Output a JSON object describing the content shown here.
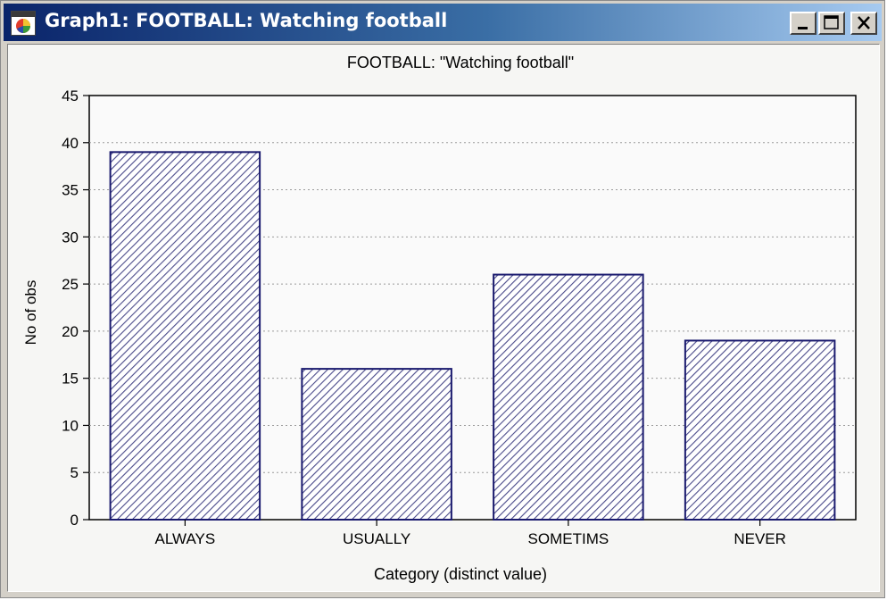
{
  "window": {
    "title": "Graph1: FOOTBALL:  Watching football",
    "icon": "statistica-app-icon",
    "controls": [
      "minimize-icon",
      "maximize-icon",
      "close-icon"
    ]
  },
  "chart_data": {
    "type": "bar",
    "title": "FOOTBALL: \"Watching football\"",
    "xlabel": "Category (distinct value)",
    "ylabel": "No of obs",
    "categories": [
      "ALWAYS",
      "USUALLY",
      "SOMETIMS",
      "NEVER"
    ],
    "values": [
      39,
      16,
      26,
      19
    ],
    "ylim": [
      0,
      45
    ],
    "yticks": [
      0,
      5,
      10,
      15,
      20,
      25,
      30,
      35,
      40,
      45
    ],
    "grid": true,
    "bar_fill": "diagonal-hatch",
    "bar_color": "#1a1a6e",
    "hatch_color": "#4a4a8a"
  }
}
